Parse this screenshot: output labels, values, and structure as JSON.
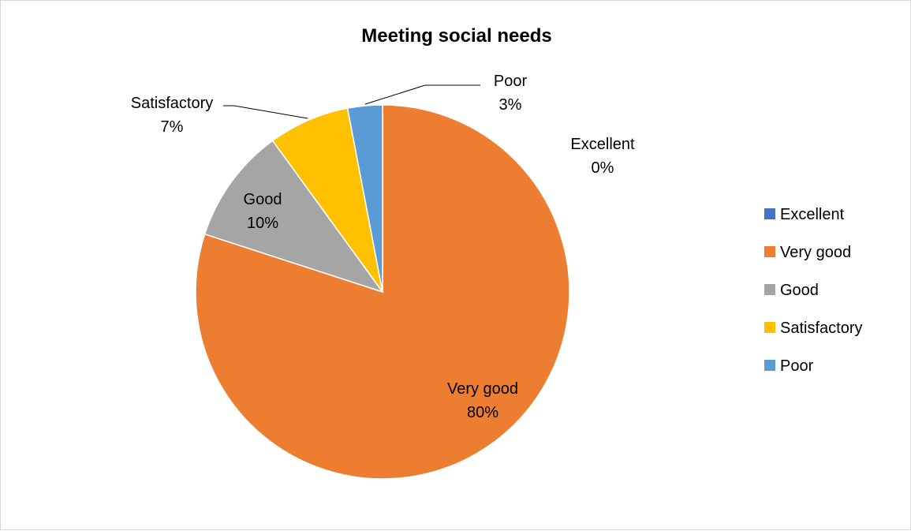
{
  "chart_data": {
    "type": "pie",
    "title": "Meeting social needs",
    "slices": [
      {
        "name": "Excellent",
        "value": 0,
        "label": "0%",
        "color": "#4472C4"
      },
      {
        "name": "Very good",
        "value": 80,
        "label": "80%",
        "color": "#ED7D31"
      },
      {
        "name": "Good",
        "value": 10,
        "label": "10%",
        "color": "#A5A5A5"
      },
      {
        "name": "Satisfactory",
        "value": 7,
        "label": "7%",
        "color": "#FFC000"
      },
      {
        "name": "Poor",
        "value": 3,
        "label": "3%",
        "color": "#5B9BD5"
      }
    ],
    "start_angle_deg": 0,
    "direction": "clockwise",
    "legend_position": "right"
  }
}
